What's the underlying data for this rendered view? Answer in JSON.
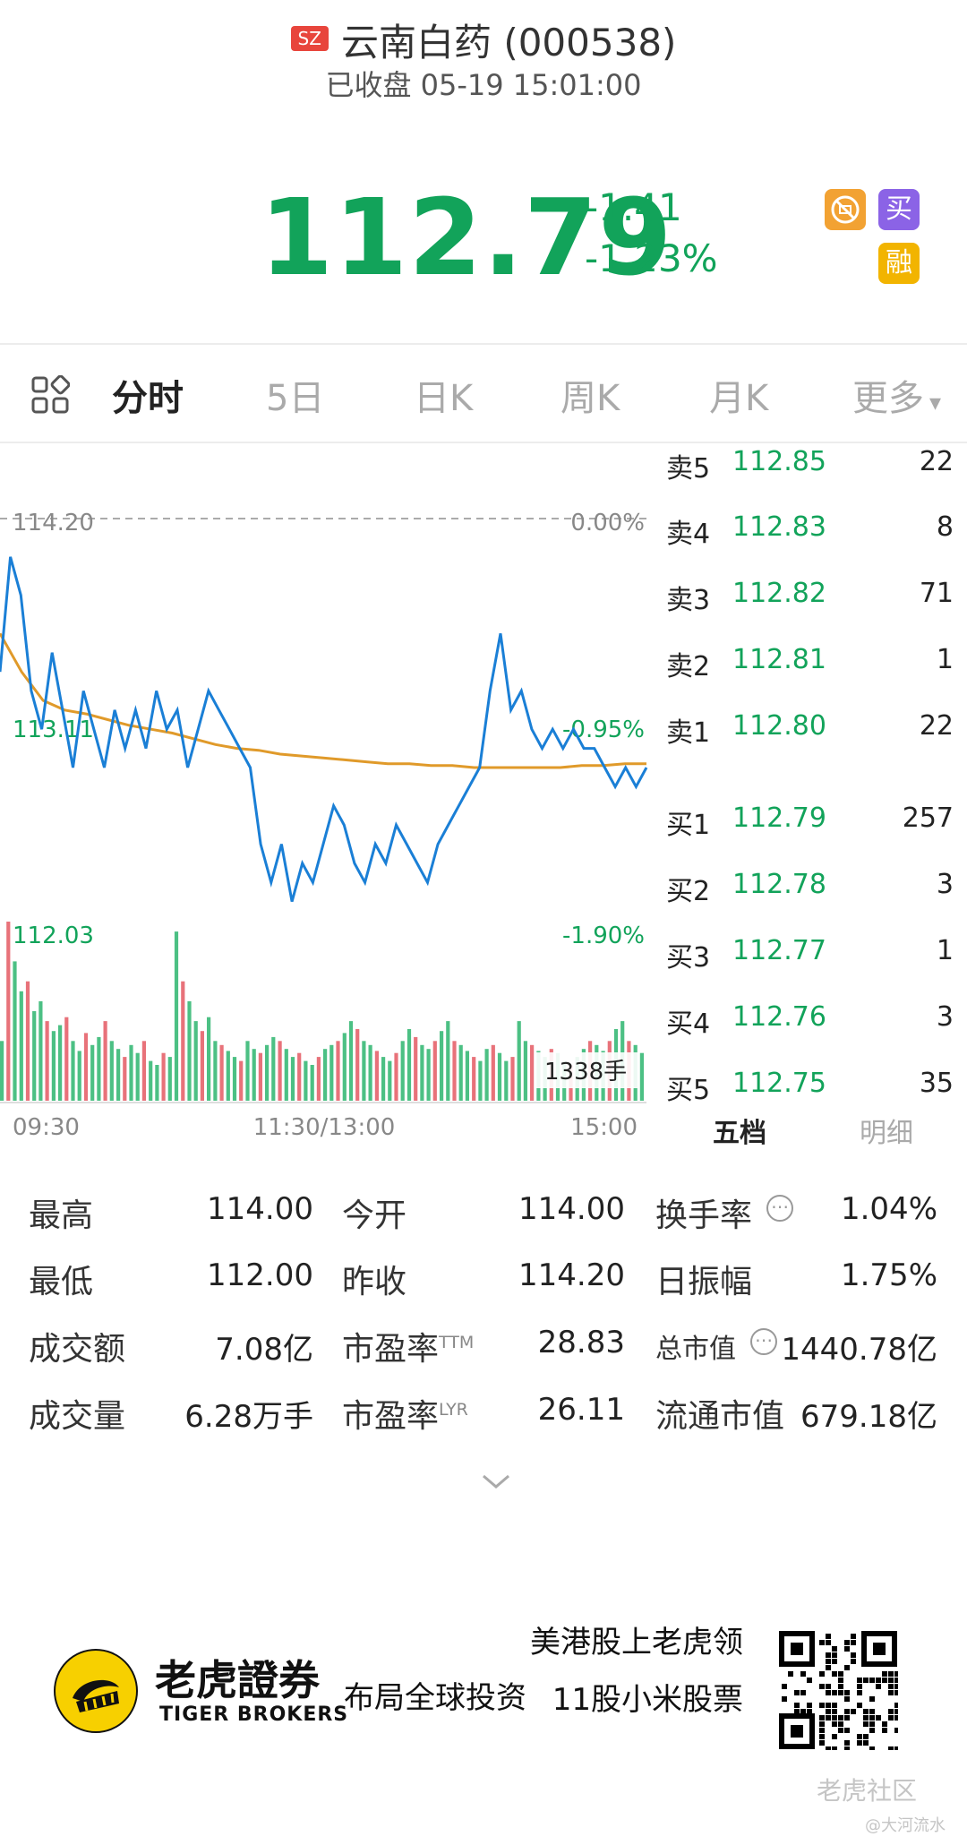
{
  "header": {
    "market_badge": "SZ",
    "stock_name": "云南白药",
    "stock_code": "(000538)",
    "status": "已收盘 05-19 15:01:00"
  },
  "quote": {
    "price": "112.79",
    "change": "-1.41",
    "change_pct": "-1.23%",
    "color_down": "#12a35a",
    "badges": [
      "买",
      "融"
    ],
    "badge_icons": [
      "no-short-icon"
    ]
  },
  "tabs": {
    "items": [
      "分时",
      "5日",
      "日K",
      "周K",
      "月K",
      "更多"
    ],
    "active": "分时",
    "more_arrow": "▾"
  },
  "chart_data": {
    "type": "line",
    "price_labels": {
      "top": "114.20",
      "mid": "113.11",
      "low": "112.03"
    },
    "pct_labels": {
      "top": "0.00%",
      "mid": "-0.95%",
      "low": "-1.90%"
    },
    "x_ticks": [
      "09:30",
      "11:30/13:00",
      "15:00"
    ],
    "volume_label": "1338手",
    "ylim": [
      112.03,
      114.2
    ],
    "series": [
      {
        "values": [
          113.4,
          114.0,
          113.8,
          113.3,
          113.1,
          113.5,
          113.2,
          112.9,
          113.3,
          113.1,
          112.9,
          113.2,
          113.0,
          113.2,
          113.0,
          113.3,
          113.1,
          113.2,
          112.9,
          113.1,
          113.3,
          113.2,
          113.1,
          113.0,
          112.9,
          112.5,
          112.3,
          112.5,
          112.2,
          112.4,
          112.3,
          112.5,
          112.7,
          112.6,
          112.4,
          112.3,
          112.5,
          112.4,
          112.6,
          112.5,
          112.4,
          112.3,
          112.5,
          112.6,
          112.7,
          112.8,
          112.9,
          113.3,
          113.6,
          113.2,
          113.3,
          113.1,
          113.0,
          113.1,
          113.0,
          113.1,
          113.0,
          113.0,
          112.9,
          112.8,
          112.9,
          112.8,
          112.9
        ]
      },
      {
        "values": [
          113.6,
          113.4,
          113.25,
          113.2,
          113.18,
          113.15,
          113.12,
          113.1,
          113.08,
          113.05,
          113.02,
          113.0,
          112.99,
          112.97,
          112.96,
          112.95,
          112.94,
          112.93,
          112.92,
          112.92,
          112.91,
          112.91,
          112.9,
          112.9,
          112.9,
          112.9,
          112.9,
          112.91,
          112.91,
          112.92,
          112.92
        ]
      }
    ],
    "volume": [
      30,
      90,
      70,
      55,
      60,
      45,
      50,
      40,
      35,
      38,
      42,
      30,
      25,
      34,
      28,
      32,
      40,
      30,
      26,
      22,
      28,
      24,
      30,
      20,
      18,
      24,
      22,
      85,
      60,
      50,
      40,
      35,
      42,
      30,
      28,
      25,
      22,
      20,
      30,
      26,
      24,
      28,
      32,
      30,
      26,
      22,
      24,
      20,
      18,
      22,
      26,
      28,
      30,
      34,
      40,
      36,
      30,
      28,
      25,
      22,
      20,
      24,
      30,
      36,
      32,
      28,
      26,
      30,
      35,
      40,
      30,
      28,
      25,
      22,
      20,
      26,
      28,
      24,
      20,
      22,
      40,
      30,
      28,
      25,
      22,
      26,
      24,
      20,
      18,
      22,
      26,
      30,
      28,
      25,
      30,
      36,
      40,
      30,
      28,
      24
    ]
  },
  "order_book": {
    "asks": [
      {
        "label": "卖5",
        "price": "112.85",
        "vol": "22"
      },
      {
        "label": "卖4",
        "price": "112.83",
        "vol": "8"
      },
      {
        "label": "卖3",
        "price": "112.82",
        "vol": "71"
      },
      {
        "label": "卖2",
        "price": "112.81",
        "vol": "1"
      },
      {
        "label": "卖1",
        "price": "112.80",
        "vol": "22"
      }
    ],
    "bids": [
      {
        "label": "买1",
        "price": "112.79",
        "vol": "257"
      },
      {
        "label": "买2",
        "price": "112.78",
        "vol": "3"
      },
      {
        "label": "买3",
        "price": "112.77",
        "vol": "1"
      },
      {
        "label": "买4",
        "price": "112.76",
        "vol": "3"
      },
      {
        "label": "买5",
        "price": "112.75",
        "vol": "35"
      }
    ],
    "tab_five": "五档",
    "tab_detail": "明细"
  },
  "stats": {
    "high_label": "最高",
    "high": "114.00",
    "open_label": "今开",
    "open": "114.00",
    "turnover_label": "换手率",
    "turnover": "1.04%",
    "low_label": "最低",
    "low": "112.00",
    "prev_label": "昨收",
    "prev": "114.20",
    "amplitude_label": "日振幅",
    "amplitude": "1.75%",
    "amount_label": "成交额",
    "amount": "7.08亿",
    "pe_ttm_label": "市盈率",
    "pe_ttm_sup": "TTM",
    "pe_ttm": "28.83",
    "mcap_label": "总市值",
    "mcap": "1440.78亿",
    "volume_label": "成交量",
    "volume": "6.28万手",
    "pe_lyr_label": "市盈率",
    "pe_lyr_sup": "LYR",
    "pe_lyr": "26.11",
    "float_mcap_label": "流通市值",
    "float_mcap": "679.18亿"
  },
  "footer": {
    "brand_cn": "老虎證券",
    "brand_en": "TIGER BROKERS",
    "slogan": "布局全球投资",
    "promo": "美港股上老虎领11股小米股票",
    "watermark_community": "老虎社区",
    "watermark_user": "@大河流水"
  }
}
